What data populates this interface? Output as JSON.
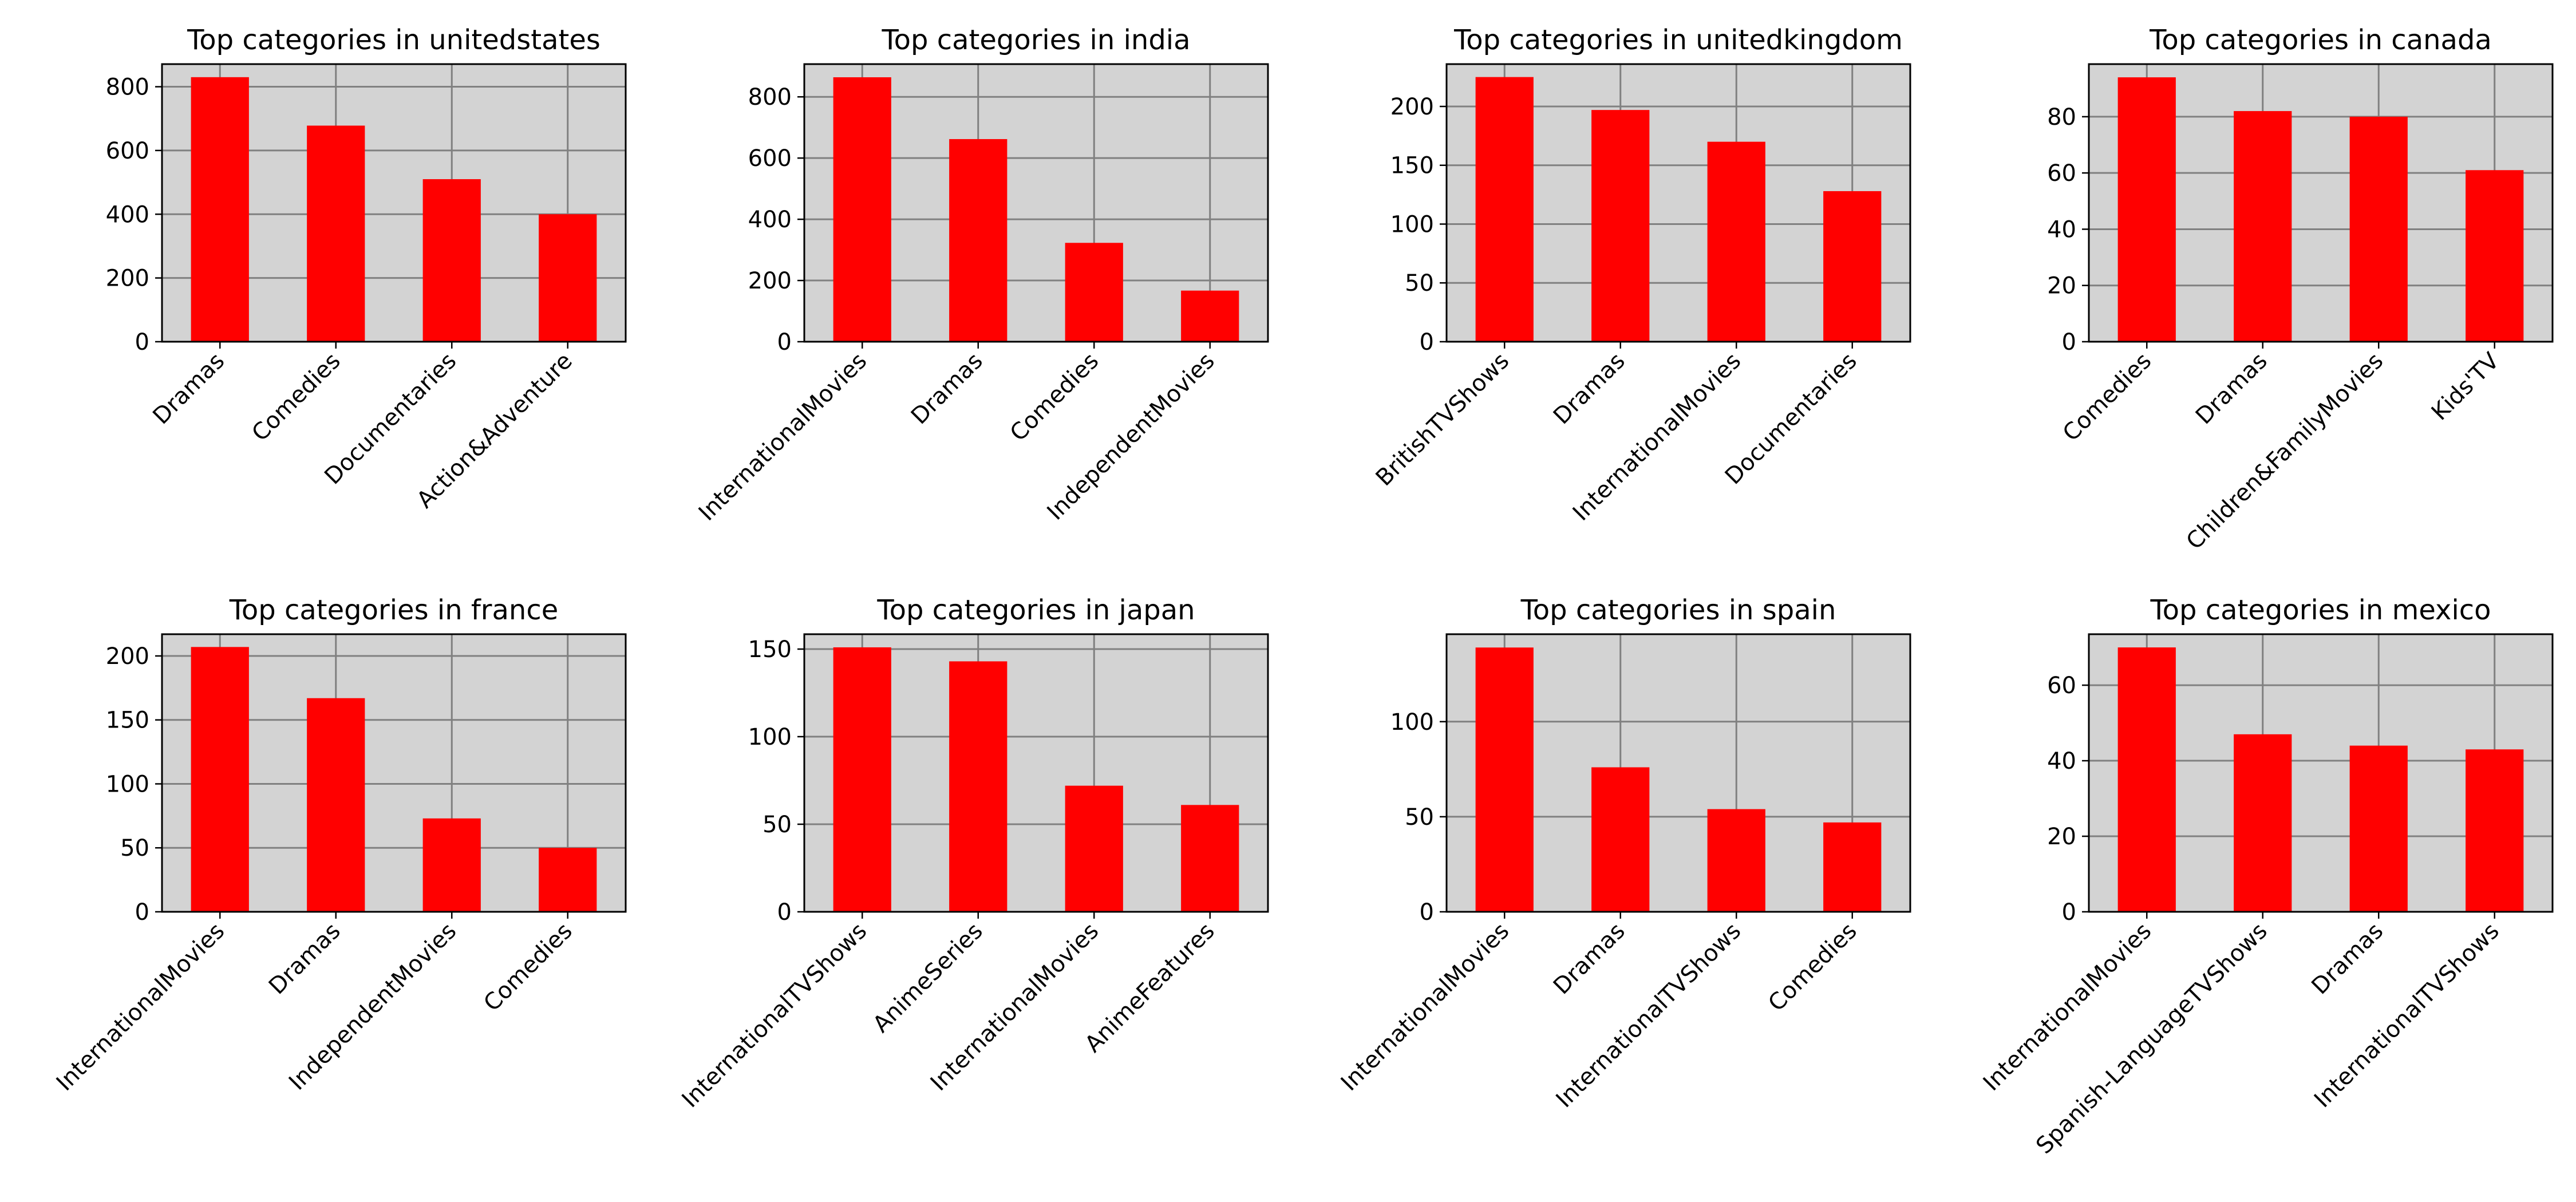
{
  "colors": {
    "bar": "#ff0000",
    "plot_background": "#d3d3d3",
    "grid": "#808080",
    "axes": "#000000"
  },
  "chart_data": [
    {
      "type": "bar",
      "title": "Top categories in unitedstates",
      "categories": [
        "Dramas",
        "Comedies",
        "Documentaries",
        "Action&Adventure"
      ],
      "values": [
        830,
        678,
        510,
        400
      ],
      "ylim": [
        0,
        871
      ],
      "yticks": [
        0,
        200,
        400,
        600,
        800
      ],
      "grid": true,
      "xlabel": "",
      "ylabel": ""
    },
    {
      "type": "bar",
      "title": "Top categories in india",
      "categories": [
        "InternationalMovies",
        "Dramas",
        "Comedies",
        "IndependentMovies"
      ],
      "values": [
        864,
        662,
        323,
        167
      ],
      "ylim": [
        0,
        907
      ],
      "yticks": [
        0,
        200,
        400,
        600,
        800
      ],
      "grid": true,
      "xlabel": "",
      "ylabel": ""
    },
    {
      "type": "bar",
      "title": "Top categories in unitedkingdom",
      "categories": [
        "BritishTVShows",
        "Dramas",
        "InternationalMovies",
        "Documentaries"
      ],
      "values": [
        225,
        197,
        170,
        128
      ],
      "ylim": [
        0,
        236
      ],
      "yticks": [
        0,
        50,
        100,
        150,
        200
      ],
      "grid": true,
      "xlabel": "",
      "ylabel": ""
    },
    {
      "type": "bar",
      "title": "Top categories in canada",
      "categories": [
        "Comedies",
        "Dramas",
        "Children&FamilyMovies",
        "Kids'TV"
      ],
      "values": [
        94,
        82,
        80,
        61
      ],
      "ylim": [
        0,
        98.7
      ],
      "yticks": [
        0,
        20,
        40,
        60,
        80
      ],
      "grid": true,
      "xlabel": "",
      "ylabel": ""
    },
    {
      "type": "bar",
      "title": "Top categories in france",
      "categories": [
        "InternationalMovies",
        "Dramas",
        "IndependentMovies",
        "Comedies"
      ],
      "values": [
        207,
        167,
        73,
        50
      ],
      "ylim": [
        0,
        217
      ],
      "yticks": [
        0,
        50,
        100,
        150,
        200
      ],
      "grid": true,
      "xlabel": "",
      "ylabel": ""
    },
    {
      "type": "bar",
      "title": "Top categories in japan",
      "categories": [
        "InternationalTVShows",
        "AnimeSeries",
        "InternationalMovies",
        "AnimeFeatures"
      ],
      "values": [
        151,
        143,
        72,
        61
      ],
      "ylim": [
        0,
        158.5
      ],
      "yticks": [
        0,
        50,
        100,
        150
      ],
      "grid": true,
      "xlabel": "",
      "ylabel": ""
    },
    {
      "type": "bar",
      "title": "Top categories in spain",
      "categories": [
        "InternationalMovies",
        "Dramas",
        "InternationalTVShows",
        "Comedies"
      ],
      "values": [
        139,
        76,
        54,
        47
      ],
      "ylim": [
        0,
        146
      ],
      "yticks": [
        0,
        50,
        100
      ],
      "grid": true,
      "xlabel": "",
      "ylabel": ""
    },
    {
      "type": "bar",
      "title": "Top categories in mexico",
      "categories": [
        "InternationalMovies",
        "Spanish-LanguageTVShows",
        "Dramas",
        "InternationalTVShows"
      ],
      "values": [
        70,
        47,
        44,
        43
      ],
      "ylim": [
        0,
        73.5
      ],
      "yticks": [
        0,
        20,
        40,
        60
      ],
      "grid": true,
      "xlabel": "",
      "ylabel": ""
    }
  ]
}
